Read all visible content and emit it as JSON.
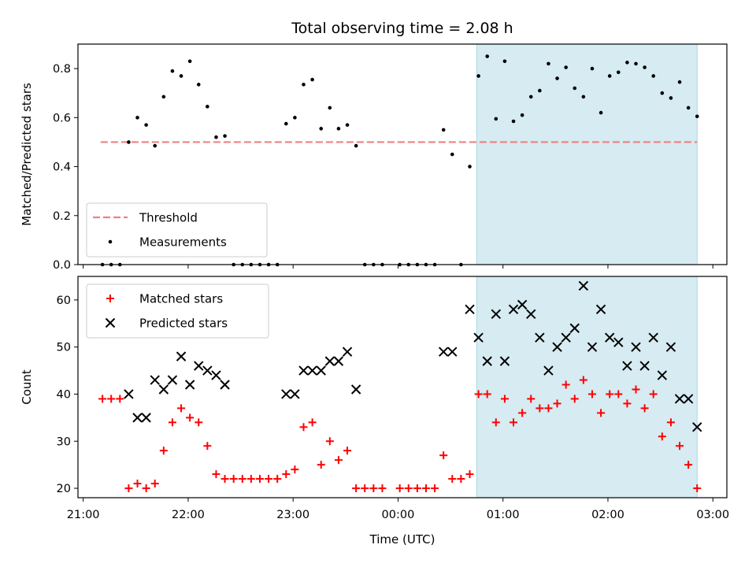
{
  "chart_data": {
    "title": "Total observing time = 2.08 h",
    "xlabel": "Time (UTC)",
    "x_range": [
      "20:57",
      "03:08"
    ],
    "x_ticks": [
      "21:00",
      "22:00",
      "23:00",
      "00:00",
      "01:00",
      "02:00",
      "03:00"
    ],
    "highlight": {
      "x_start": "00:45",
      "x_end": "02:51",
      "color": "#add8e6"
    },
    "colors": {
      "threshold": "#f08080",
      "measurements": "#000000",
      "matched": "#ff0000",
      "predicted": "#000000"
    },
    "panels": [
      {
        "type": "scatter",
        "ylabel": "Matched/Predicted stars",
        "ylim": [
          0,
          0.9
        ],
        "y_ticks": [
          "0.0",
          "0.2",
          "0.4",
          "0.6",
          "0.8"
        ],
        "legend": {
          "location": "lower-left",
          "entries": [
            "Threshold",
            "Measurements"
          ]
        },
        "threshold": {
          "name": "Threshold",
          "y": 0.5,
          "x_start": "21:10",
          "x_end": "02:51"
        },
        "series": [
          {
            "name": "Measurements",
            "points": [
              [
                "21:11",
                0
              ],
              [
                "21:16",
                0
              ],
              [
                "21:21",
                0
              ],
              [
                "21:26",
                0.5
              ],
              [
                "21:31",
                0.6
              ],
              [
                "21:36",
                0.57
              ],
              [
                "21:41",
                0.485
              ],
              [
                "21:46",
                0.685
              ],
              [
                "21:51",
                0.79
              ],
              [
                "21:56",
                0.77
              ],
              [
                "22:01",
                0.83
              ],
              [
                "22:06",
                0.735
              ],
              [
                "22:11",
                0.645
              ],
              [
                "22:16",
                0.52
              ],
              [
                "22:21",
                0.525
              ],
              [
                "22:26",
                0
              ],
              [
                "22:31",
                0
              ],
              [
                "22:36",
                0
              ],
              [
                "22:41",
                0
              ],
              [
                "22:46",
                0
              ],
              [
                "22:51",
                0
              ],
              [
                "22:56",
                0.575
              ],
              [
                "23:01",
                0.6
              ],
              [
                "23:06",
                0.735
              ],
              [
                "23:11",
                0.755
              ],
              [
                "23:16",
                0.555
              ],
              [
                "23:21",
                0.64
              ],
              [
                "23:26",
                0.555
              ],
              [
                "23:31",
                0.57
              ],
              [
                "23:36",
                0.485
              ],
              [
                "23:41",
                0
              ],
              [
                "23:46",
                0
              ],
              [
                "23:51",
                0
              ],
              [
                "00:01",
                0
              ],
              [
                "00:06",
                0
              ],
              [
                "00:11",
                0
              ],
              [
                "00:16",
                0
              ],
              [
                "00:21",
                0
              ],
              [
                "00:26",
                0.55
              ],
              [
                "00:31",
                0.45
              ],
              [
                "00:36",
                0
              ],
              [
                "00:41",
                0.4
              ],
              [
                "00:46",
                0.77
              ],
              [
                "00:51",
                0.85
              ],
              [
                "00:56",
                0.595
              ],
              [
                "01:01",
                0.83
              ],
              [
                "01:06",
                0.585
              ],
              [
                "01:11",
                0.61
              ],
              [
                "01:16",
                0.685
              ],
              [
                "01:21",
                0.71
              ],
              [
                "01:26",
                0.82
              ],
              [
                "01:31",
                0.76
              ],
              [
                "01:36",
                0.805
              ],
              [
                "01:41",
                0.72
              ],
              [
                "01:46",
                0.685
              ],
              [
                "01:51",
                0.8
              ],
              [
                "01:56",
                0.62
              ],
              [
                "02:01",
                0.77
              ],
              [
                "02:06",
                0.785
              ],
              [
                "02:11",
                0.825
              ],
              [
                "02:16",
                0.82
              ],
              [
                "02:21",
                0.805
              ],
              [
                "02:26",
                0.77
              ],
              [
                "02:31",
                0.7
              ],
              [
                "02:36",
                0.68
              ],
              [
                "02:41",
                0.745
              ],
              [
                "02:46",
                0.64
              ],
              [
                "02:51",
                0.605
              ]
            ]
          }
        ]
      },
      {
        "type": "scatter",
        "ylabel": "Count",
        "ylim": [
          18,
          65
        ],
        "y_ticks": [
          "20",
          "30",
          "40",
          "50",
          "60"
        ],
        "legend": {
          "location": "upper-left",
          "entries": [
            "Matched stars",
            "Predicted stars"
          ]
        },
        "series": [
          {
            "name": "Matched stars",
            "marker": "+",
            "points": [
              [
                "21:11",
                39
              ],
              [
                "21:16",
                39
              ],
              [
                "21:21",
                39
              ],
              [
                "21:26",
                20
              ],
              [
                "21:31",
                21
              ],
              [
                "21:36",
                20
              ],
              [
                "21:41",
                21
              ],
              [
                "21:46",
                28
              ],
              [
                "21:51",
                34
              ],
              [
                "21:56",
                37
              ],
              [
                "22:01",
                35
              ],
              [
                "22:06",
                34
              ],
              [
                "22:11",
                29
              ],
              [
                "22:16",
                23
              ],
              [
                "22:21",
                22
              ],
              [
                "22:26",
                22
              ],
              [
                "22:31",
                22
              ],
              [
                "22:36",
                22
              ],
              [
                "22:41",
                22
              ],
              [
                "22:46",
                22
              ],
              [
                "22:51",
                22
              ],
              [
                "22:56",
                23
              ],
              [
                "23:01",
                24
              ],
              [
                "23:06",
                33
              ],
              [
                "23:11",
                34
              ],
              [
                "23:16",
                25
              ],
              [
                "23:21",
                30
              ],
              [
                "23:26",
                26
              ],
              [
                "23:31",
                28
              ],
              [
                "23:36",
                20
              ],
              [
                "23:41",
                20
              ],
              [
                "23:46",
                20
              ],
              [
                "23:51",
                20
              ],
              [
                "00:01",
                20
              ],
              [
                "00:06",
                20
              ],
              [
                "00:11",
                20
              ],
              [
                "00:16",
                20
              ],
              [
                "00:21",
                20
              ],
              [
                "00:26",
                27
              ],
              [
                "00:31",
                22
              ],
              [
                "00:36",
                22
              ],
              [
                "00:41",
                23
              ],
              [
                "00:46",
                40
              ],
              [
                "00:51",
                40
              ],
              [
                "00:56",
                34
              ],
              [
                "01:01",
                39
              ],
              [
                "01:06",
                34
              ],
              [
                "01:11",
                36
              ],
              [
                "01:16",
                39
              ],
              [
                "01:21",
                37
              ],
              [
                "01:26",
                37
              ],
              [
                "01:31",
                38
              ],
              [
                "01:36",
                42
              ],
              [
                "01:41",
                39
              ],
              [
                "01:46",
                43
              ],
              [
                "01:51",
                40
              ],
              [
                "01:56",
                36
              ],
              [
                "02:01",
                40
              ],
              [
                "02:06",
                40
              ],
              [
                "02:11",
                38
              ],
              [
                "02:16",
                41
              ],
              [
                "02:21",
                37
              ],
              [
                "02:26",
                40
              ],
              [
                "02:31",
                31
              ],
              [
                "02:36",
                34
              ],
              [
                "02:41",
                29
              ],
              [
                "02:46",
                25
              ],
              [
                "02:51",
                20
              ]
            ]
          },
          {
            "name": "Predicted stars",
            "marker": "x",
            "points": [
              [
                "21:26",
                40
              ],
              [
                "21:31",
                35
              ],
              [
                "21:36",
                35
              ],
              [
                "21:41",
                43
              ],
              [
                "21:46",
                41
              ],
              [
                "21:51",
                43
              ],
              [
                "21:56",
                48
              ],
              [
                "22:01",
                42
              ],
              [
                "22:06",
                46
              ],
              [
                "22:11",
                45
              ],
              [
                "22:16",
                44
              ],
              [
                "22:21",
                42
              ],
              [
                "22:56",
                40
              ],
              [
                "23:01",
                40
              ],
              [
                "23:06",
                45
              ],
              [
                "23:11",
                45
              ],
              [
                "23:16",
                45
              ],
              [
                "23:21",
                47
              ],
              [
                "23:26",
                47
              ],
              [
                "23:31",
                49
              ],
              [
                "23:36",
                41
              ],
              [
                "00:26",
                49
              ],
              [
                "00:31",
                49
              ],
              [
                "00:41",
                58
              ],
              [
                "00:46",
                52
              ],
              [
                "00:51",
                47
              ],
              [
                "00:56",
                57
              ],
              [
                "01:01",
                47
              ],
              [
                "01:06",
                58
              ],
              [
                "01:11",
                59
              ],
              [
                "01:16",
                57
              ],
              [
                "01:21",
                52
              ],
              [
                "01:26",
                45
              ],
              [
                "01:31",
                50
              ],
              [
                "01:36",
                52
              ],
              [
                "01:41",
                54
              ],
              [
                "01:46",
                63
              ],
              [
                "01:51",
                50
              ],
              [
                "01:56",
                58
              ],
              [
                "02:01",
                52
              ],
              [
                "02:06",
                51
              ],
              [
                "02:11",
                46
              ],
              [
                "02:16",
                50
              ],
              [
                "02:21",
                46
              ],
              [
                "02:26",
                52
              ],
              [
                "02:31",
                44
              ],
              [
                "02:36",
                50
              ],
              [
                "02:41",
                39
              ],
              [
                "02:46",
                39
              ],
              [
                "02:51",
                33
              ]
            ]
          }
        ]
      }
    ]
  }
}
